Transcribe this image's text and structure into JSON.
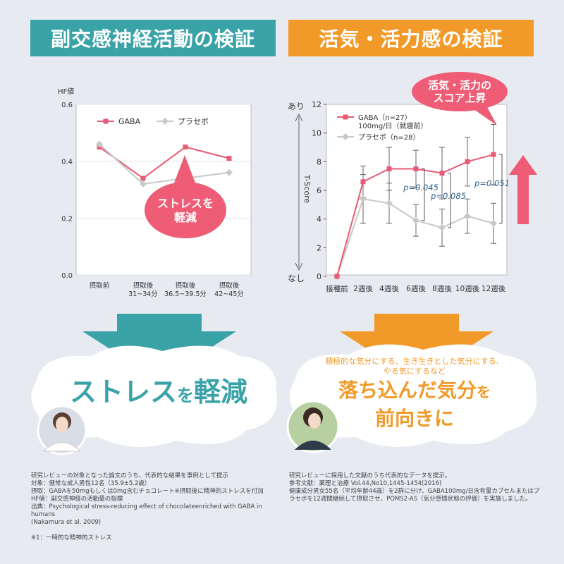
{
  "headers": {
    "left": "副交感神経活動の検証",
    "right": "活気・活力感の検証"
  },
  "colors": {
    "teal": "#3aa3a8",
    "orange": "#f29a29",
    "gaba": "#e85a75",
    "placebo": "#c8c8c8",
    "arrow_pink": "#ee5c76"
  },
  "chart_data": [
    {
      "type": "line",
      "ylabel": "HF値",
      "ylim": [
        0,
        0.6
      ],
      "yticks": [
        "0.0",
        "0.2",
        "0.4",
        "0.6"
      ],
      "categories": [
        "摂取前",
        "摂取後\n31~34分",
        "摂取後\n36.5~39.5分",
        "摂取後\n42~45分"
      ],
      "series": [
        {
          "name": "GABA",
          "values": [
            0.45,
            0.34,
            0.45,
            0.41
          ]
        },
        {
          "name": "プラセボ",
          "values": [
            0.46,
            0.32,
            0.34,
            0.36
          ]
        }
      ],
      "callout": "ストレスを\n軽減"
    },
    {
      "type": "line",
      "ylabel": "T-Score",
      "ylim": [
        0,
        12
      ],
      "yticks": [
        "0",
        "2",
        "4",
        "6",
        "8",
        "10",
        "12"
      ],
      "y_top_label": "あり",
      "y_bottom_label": "なし",
      "categories": [
        "接種前",
        "2週後",
        "4週後",
        "6週後",
        "8週後",
        "10週後",
        "12週後"
      ],
      "series": [
        {
          "name": "GABA（n=27）\n100mg/日（就寝前）",
          "values": [
            0,
            6.6,
            7.5,
            7.5,
            7.2,
            8.0,
            8.5
          ],
          "err": [
            0,
            1.1,
            1.5,
            1.3,
            1.8,
            1.7,
            2.1
          ]
        },
        {
          "name": "プラセボ（n=28）",
          "values": [
            0,
            5.4,
            5.1,
            3.9,
            3.4,
            4.2,
            3.7
          ],
          "err": [
            0,
            1.7,
            1.4,
            1.1,
            1.3,
            1.2,
            1.4
          ]
        }
      ],
      "p_values": [
        "p=0.045",
        "p=0.085",
        "p=0.051"
      ],
      "callout": "活気・活力の\nスコア上昇"
    }
  ],
  "bubbles": {
    "left_main": "ストレス",
    "left_mid": "を",
    "left_end": "軽減",
    "right_sub": "積極的な気分にする、生き生きとした気分にする、\nやる気にするなど",
    "right_main_1": "落ち込んだ気分",
    "right_main_1b": "を",
    "right_main_2": "前向きに"
  },
  "notes": {
    "left": "研究レビューの対象となった論文のうち、代表的な結果を事例として提示\n対象：健常な成人男性12名（35.9±5.2歳）\n摂取：GABAを50mgもしくは0mg含むチョコレート※摂取後に精神的ストレスを付加\nHF値：副交感神経の活動量の指標\n出典：Psychological stress-reducing effect of chocolateenriched with GABA in humans\n(Nakamura et al. 2009)\n\n※1：一時的な精神的ストレス",
    "right": "研究レビューに採用した文献のうち代表的なデータを提示。\n参考文献：薬理と治療 Vol.44,No10,1445-1454(2016)\n健康成分男女55名（平均年齢44歳）を2群に分け、GABA100mg/日含有量カプセルまたはプ\nラセボを12週間継続して摂取させ、POMS2-AS（気分感情状態の評価）を実施しました。"
  }
}
